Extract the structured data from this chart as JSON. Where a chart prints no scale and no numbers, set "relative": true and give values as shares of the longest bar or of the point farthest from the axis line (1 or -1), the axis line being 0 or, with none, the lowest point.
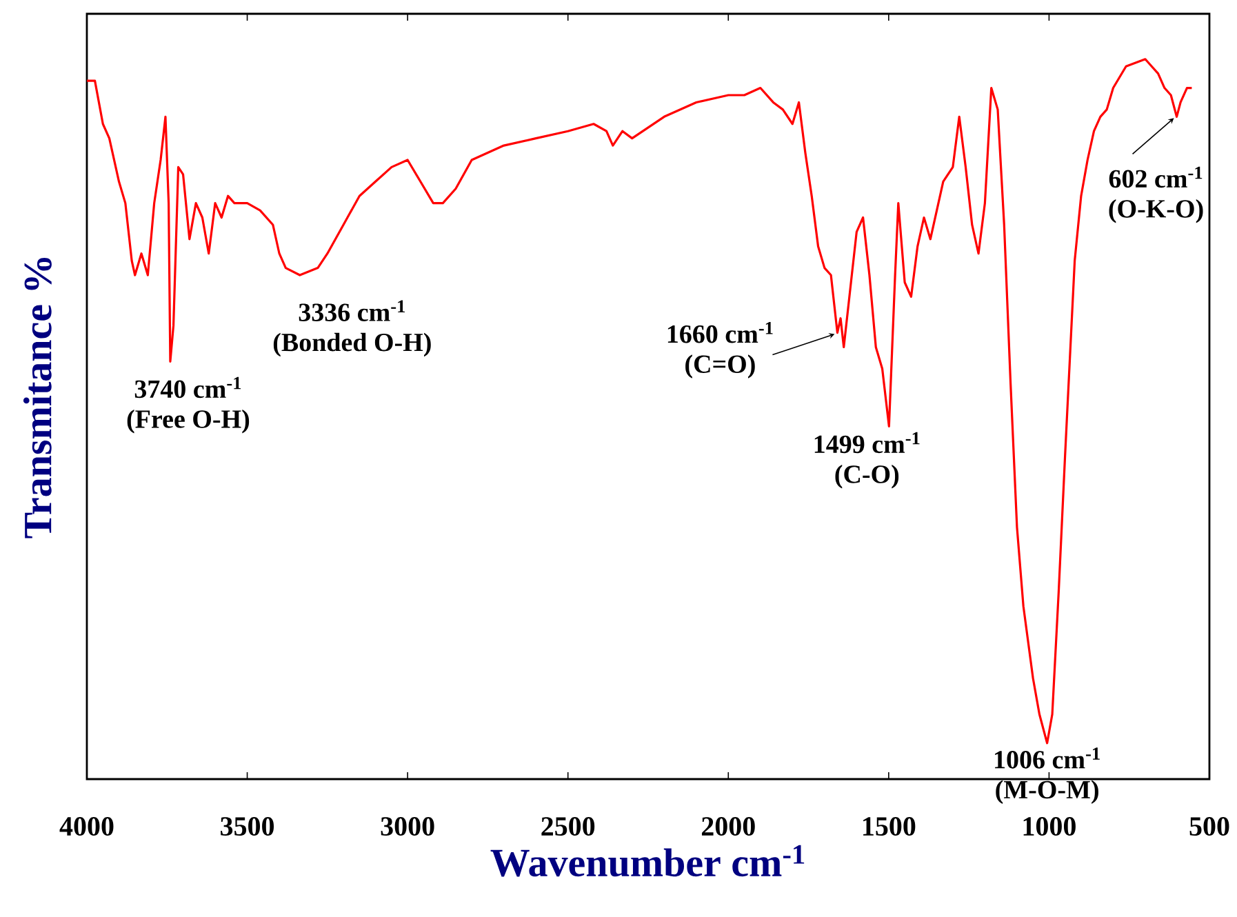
{
  "chart_data": {
    "type": "line",
    "relative": true,
    "xlabel": "Wavenumber cm$^{-1}$",
    "ylabel": "Transmitance %",
    "color": "#ff0000",
    "line_style": "solid",
    "tick_labels": "x",
    "xlim": [
      4000,
      500
    ],
    "xticks": [
      4000,
      3500,
      3000,
      2500,
      2000,
      1500,
      1000,
      500
    ],
    "x": [
      4000,
      3975,
      3950,
      3930,
      3900,
      3880,
      3860,
      3850,
      3830,
      3810,
      3790,
      3770,
      3755,
      3745,
      3740,
      3730,
      3715,
      3700,
      3680,
      3660,
      3640,
      3620,
      3600,
      3580,
      3560,
      3540,
      3500,
      3460,
      3420,
      3400,
      3380,
      3336,
      3280,
      3250,
      3200,
      3150,
      3100,
      3050,
      3000,
      2960,
      2920,
      2890,
      2850,
      2800,
      2750,
      2700,
      2600,
      2500,
      2420,
      2380,
      2360,
      2330,
      2300,
      2200,
      2100,
      2000,
      1950,
      1900,
      1860,
      1830,
      1800,
      1780,
      1760,
      1740,
      1720,
      1700,
      1680,
      1670,
      1660,
      1650,
      1640,
      1620,
      1600,
      1580,
      1560,
      1540,
      1520,
      1499,
      1480,
      1470,
      1450,
      1430,
      1410,
      1390,
      1370,
      1350,
      1330,
      1300,
      1280,
      1260,
      1240,
      1220,
      1200,
      1180,
      1160,
      1140,
      1120,
      1100,
      1080,
      1050,
      1030,
      1006,
      990,
      970,
      950,
      920,
      900,
      880,
      860,
      840,
      820,
      800,
      760,
      700,
      680,
      660,
      640,
      620,
      602,
      590,
      570,
      555
    ],
    "values": [
      0.97,
      0.97,
      0.91,
      0.89,
      0.83,
      0.8,
      0.72,
      0.7,
      0.73,
      0.7,
      0.8,
      0.86,
      0.92,
      0.8,
      0.58,
      0.63,
      0.85,
      0.84,
      0.75,
      0.8,
      0.78,
      0.73,
      0.8,
      0.78,
      0.81,
      0.8,
      0.8,
      0.79,
      0.77,
      0.73,
      0.71,
      0.7,
      0.71,
      0.73,
      0.77,
      0.81,
      0.83,
      0.85,
      0.86,
      0.83,
      0.8,
      0.8,
      0.82,
      0.86,
      0.87,
      0.88,
      0.89,
      0.9,
      0.91,
      0.9,
      0.88,
      0.9,
      0.89,
      0.92,
      0.94,
      0.95,
      0.95,
      0.96,
      0.94,
      0.93,
      0.91,
      0.94,
      0.87,
      0.81,
      0.74,
      0.71,
      0.7,
      0.66,
      0.62,
      0.64,
      0.6,
      0.68,
      0.76,
      0.78,
      0.7,
      0.6,
      0.57,
      0.49,
      0.7,
      0.8,
      0.69,
      0.67,
      0.74,
      0.78,
      0.75,
      0.79,
      0.83,
      0.85,
      0.92,
      0.85,
      0.77,
      0.73,
      0.8,
      0.96,
      0.93,
      0.77,
      0.55,
      0.35,
      0.24,
      0.14,
      0.09,
      0.05,
      0.09,
      0.26,
      0.45,
      0.72,
      0.81,
      0.86,
      0.9,
      0.92,
      0.93,
      0.96,
      0.99,
      1.0,
      0.99,
      0.98,
      0.96,
      0.95,
      0.92,
      0.94,
      0.96,
      0.96
    ],
    "annotations": [
      {
        "text": "3740 cm$^{-1}$",
        "x": 3740,
        "y": 0.58
      },
      "(Free O-H)",
      {
        "text": "3336 cm$^{-1}$",
        "x": 3336,
        "y": 0.7
      },
      "(Bonded O-H)",
      {
        "text": "1660 cm$^{-1}$",
        "x": 1660,
        "y": 0.62
      },
      "(C=O)",
      {
        "text": "1499 cm$^{-1}$",
        "x": 1499,
        "y": 0.49
      },
      "(C-O)",
      {
        "text": "1006 cm$^{-1}$",
        "x": 1006,
        "y": 0.05
      },
      "(M-O-M)",
      {
        "text": "602 cm$^{-1}$",
        "x": 602,
        "y": 0.92
      },
      "(O-K-O)"
    ]
  }
}
